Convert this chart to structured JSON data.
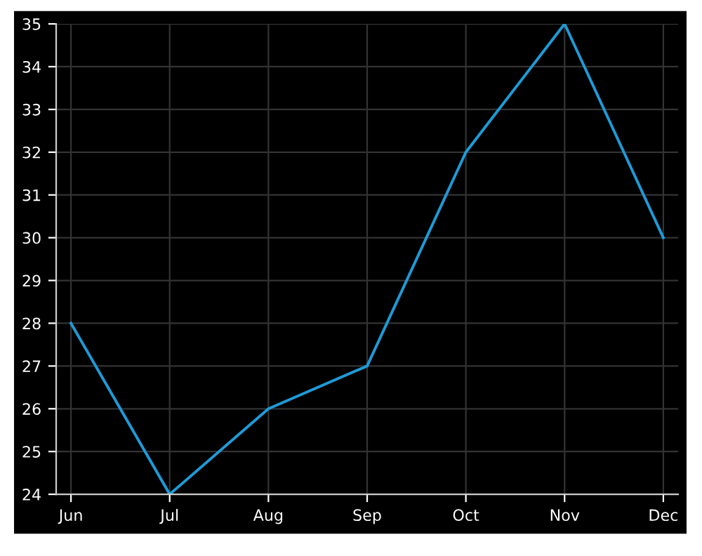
{
  "chart_data": {
    "type": "line",
    "categories": [
      "Jun",
      "Jul",
      "Aug",
      "Sep",
      "Oct",
      "Nov",
      "Dec"
    ],
    "series": [
      {
        "color": "#1e9bd7",
        "values": [
          28,
          24,
          26,
          27,
          32,
          35,
          30
        ]
      }
    ],
    "ylim": [
      24,
      35
    ],
    "yticks": [
      24,
      25,
      26,
      27,
      28,
      29,
      30,
      31,
      32,
      33,
      34,
      35
    ],
    "grid": true,
    "marker": "none",
    "line_style": "solid"
  }
}
